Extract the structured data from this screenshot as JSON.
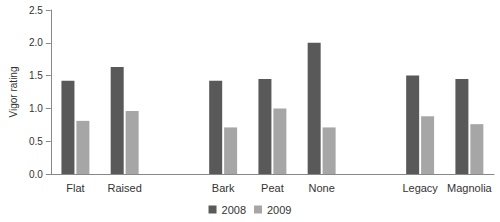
{
  "chart_data": {
    "type": "bar",
    "y_label": "Vigor rating",
    "categories": [
      "Flat",
      "Raised",
      null,
      "Bark",
      "Peat",
      "None",
      null,
      "Legacy",
      "Magnolia"
    ],
    "series": [
      {
        "name": "2008",
        "color": "#595959",
        "values": [
          1.42,
          1.63,
          null,
          1.42,
          1.45,
          2.0,
          null,
          1.5,
          1.45
        ]
      },
      {
        "name": "2009",
        "color": "#a6a6a6",
        "values": [
          0.81,
          0.96,
          null,
          0.71,
          1.0,
          0.71,
          null,
          0.88,
          0.76
        ]
      }
    ],
    "ylim": [
      0,
      2.5
    ],
    "yticks": [
      {
        "value": 0,
        "label": "0.0"
      },
      0.5,
      {
        "value": 1,
        "label": "1.0"
      },
      1.5,
      {
        "value": 2,
        "label": "2.0"
      },
      2.5
    ],
    "grid": false,
    "legend": "bottom"
  }
}
